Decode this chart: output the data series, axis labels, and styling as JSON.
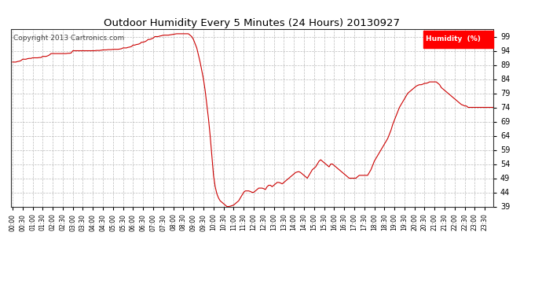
{
  "title": "Outdoor Humidity Every 5 Minutes (24 Hours) 20130927",
  "copyright": "Copyright 2013 Cartronics.com",
  "legend_label": "Humidity  (%)",
  "line_color": "#cc0000",
  "background_color": "#ffffff",
  "grid_color": "#aaaaaa",
  "ylim": [
    39.0,
    101.5
  ],
  "yticks": [
    39.0,
    44.0,
    49.0,
    54.0,
    59.0,
    64.0,
    69.0,
    74.0,
    79.0,
    84.0,
    89.0,
    94.0,
    99.0
  ],
  "humidity_data": [
    90.0,
    90.0,
    90.0,
    90.2,
    90.3,
    90.5,
    91.0,
    91.0,
    91.0,
    91.2,
    91.3,
    91.3,
    91.5,
    91.5,
    91.5,
    91.5,
    91.6,
    91.6,
    92.0,
    92.0,
    92.0,
    92.2,
    92.5,
    93.0,
    93.0,
    93.0,
    93.0,
    93.0,
    93.0,
    93.0,
    93.0,
    93.0,
    93.0,
    93.1,
    93.1,
    93.2,
    94.0,
    94.0,
    94.0,
    94.0,
    94.0,
    94.0,
    94.0,
    94.0,
    94.0,
    94.0,
    94.0,
    94.0,
    94.0,
    94.0,
    94.1,
    94.1,
    94.1,
    94.2,
    94.3,
    94.3,
    94.3,
    94.4,
    94.4,
    94.4,
    94.5,
    94.5,
    94.5,
    94.5,
    94.6,
    94.7,
    95.0,
    95.0,
    95.0,
    95.2,
    95.3,
    95.5,
    96.0,
    96.0,
    96.2,
    96.3,
    96.5,
    97.0,
    97.0,
    97.2,
    97.5,
    98.0,
    98.0,
    98.2,
    98.5,
    99.0,
    99.0,
    99.0,
    99.2,
    99.3,
    99.5,
    99.5,
    99.5,
    99.5,
    99.6,
    99.7,
    99.8,
    99.9,
    100.0,
    100.0,
    100.0,
    100.0,
    100.0,
    100.0,
    100.0,
    100.0,
    99.5,
    99.0,
    98.0,
    96.5,
    95.0,
    92.5,
    90.0,
    87.0,
    84.0,
    80.0,
    75.0,
    70.0,
    64.0,
    57.0,
    50.0,
    46.0,
    43.5,
    42.0,
    41.0,
    40.5,
    40.0,
    39.5,
    39.0,
    39.0,
    39.1,
    39.3,
    39.5,
    40.0,
    40.5,
    41.0,
    42.0,
    43.0,
    44.0,
    44.5,
    44.5,
    44.5,
    44.3,
    44.0,
    44.0,
    44.5,
    45.0,
    45.5,
    45.5,
    45.5,
    45.3,
    45.0,
    46.0,
    46.5,
    46.5,
    46.0,
    46.5,
    47.0,
    47.5,
    47.5,
    47.3,
    47.0,
    47.5,
    48.0,
    48.5,
    49.0,
    49.5,
    50.0,
    50.5,
    51.0,
    51.2,
    51.3,
    51.0,
    50.5,
    50.0,
    49.5,
    49.0,
    50.0,
    51.0,
    52.0,
    52.5,
    53.0,
    54.0,
    55.0,
    55.5,
    55.0,
    54.5,
    54.0,
    53.5,
    53.0,
    54.0,
    54.0,
    53.5,
    53.0,
    52.5,
    52.0,
    51.5,
    51.0,
    50.5,
    50.0,
    49.5,
    49.0,
    49.0,
    49.0,
    49.0,
    49.0,
    49.5,
    50.0,
    50.0,
    50.0,
    50.0,
    50.0,
    50.0,
    51.0,
    52.0,
    53.5,
    55.0,
    56.0,
    57.0,
    58.0,
    59.0,
    60.0,
    61.0,
    62.0,
    63.0,
    64.5,
    66.0,
    68.0,
    69.5,
    71.0,
    72.5,
    74.0,
    75.0,
    76.0,
    77.0,
    78.0,
    79.0,
    79.5,
    80.0,
    80.5,
    81.0,
    81.5,
    81.8,
    82.0,
    82.0,
    82.2,
    82.5,
    82.5,
    82.7,
    83.0,
    83.0,
    83.0,
    83.0,
    83.0,
    82.5,
    82.0,
    81.0,
    80.5,
    80.0,
    79.5,
    79.0,
    78.5,
    78.0,
    77.5,
    77.0,
    76.5,
    76.0,
    75.5,
    75.0,
    74.8,
    74.5,
    74.5,
    74.0,
    74.0,
    74.0,
    74.0,
    74.0,
    74.0,
    74.0,
    74.0,
    74.0,
    74.0,
    74.0,
    74.0,
    74.0,
    74.0,
    74.0,
    74.0
  ]
}
